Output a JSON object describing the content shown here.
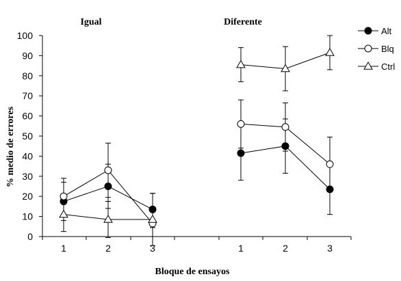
{
  "chart_data": {
    "type": "line",
    "ylabel": "% medio de errores",
    "xlabel": "Bloque de ensayos",
    "ylim": [
      0,
      100
    ],
    "yticks": [
      0,
      10,
      20,
      30,
      40,
      50,
      60,
      70,
      80,
      90,
      100
    ],
    "grid": false,
    "legend_position": "top-right",
    "panels": [
      {
        "title": "Igual",
        "x": [
          1,
          2,
          3
        ],
        "series": [
          {
            "name": "Alt",
            "marker": "filled-circle",
            "values": [
              17.5,
              25,
              13.5
            ],
            "err": [
              9.5,
              11,
              8
            ]
          },
          {
            "name": "Blq",
            "marker": "open-circle",
            "values": [
              20,
              33,
              6.5
            ],
            "err": [
              9,
              13.5,
              2
            ]
          },
          {
            "name": "Ctrl",
            "marker": "open-triangle",
            "values": [
              11,
              8.5,
              8.5
            ],
            "err": [
              8.5,
              9,
              13
            ]
          }
        ]
      },
      {
        "title": "Diferente",
        "x": [
          1,
          2,
          3
        ],
        "series": [
          {
            "name": "Alt",
            "marker": "filled-circle",
            "values": [
              41.5,
              45,
              23.5
            ],
            "err": [
              13.5,
              13.5,
              12.5
            ]
          },
          {
            "name": "Blq",
            "marker": "open-circle",
            "values": [
              56,
              54.5,
              36
            ],
            "err": [
              12,
              12,
              13.5
            ]
          },
          {
            "name": "Ctrl",
            "marker": "open-triangle",
            "values": [
              85.5,
              83.5,
              91.5
            ],
            "err": [
              8.5,
              11,
              8.5
            ]
          }
        ]
      }
    ]
  }
}
